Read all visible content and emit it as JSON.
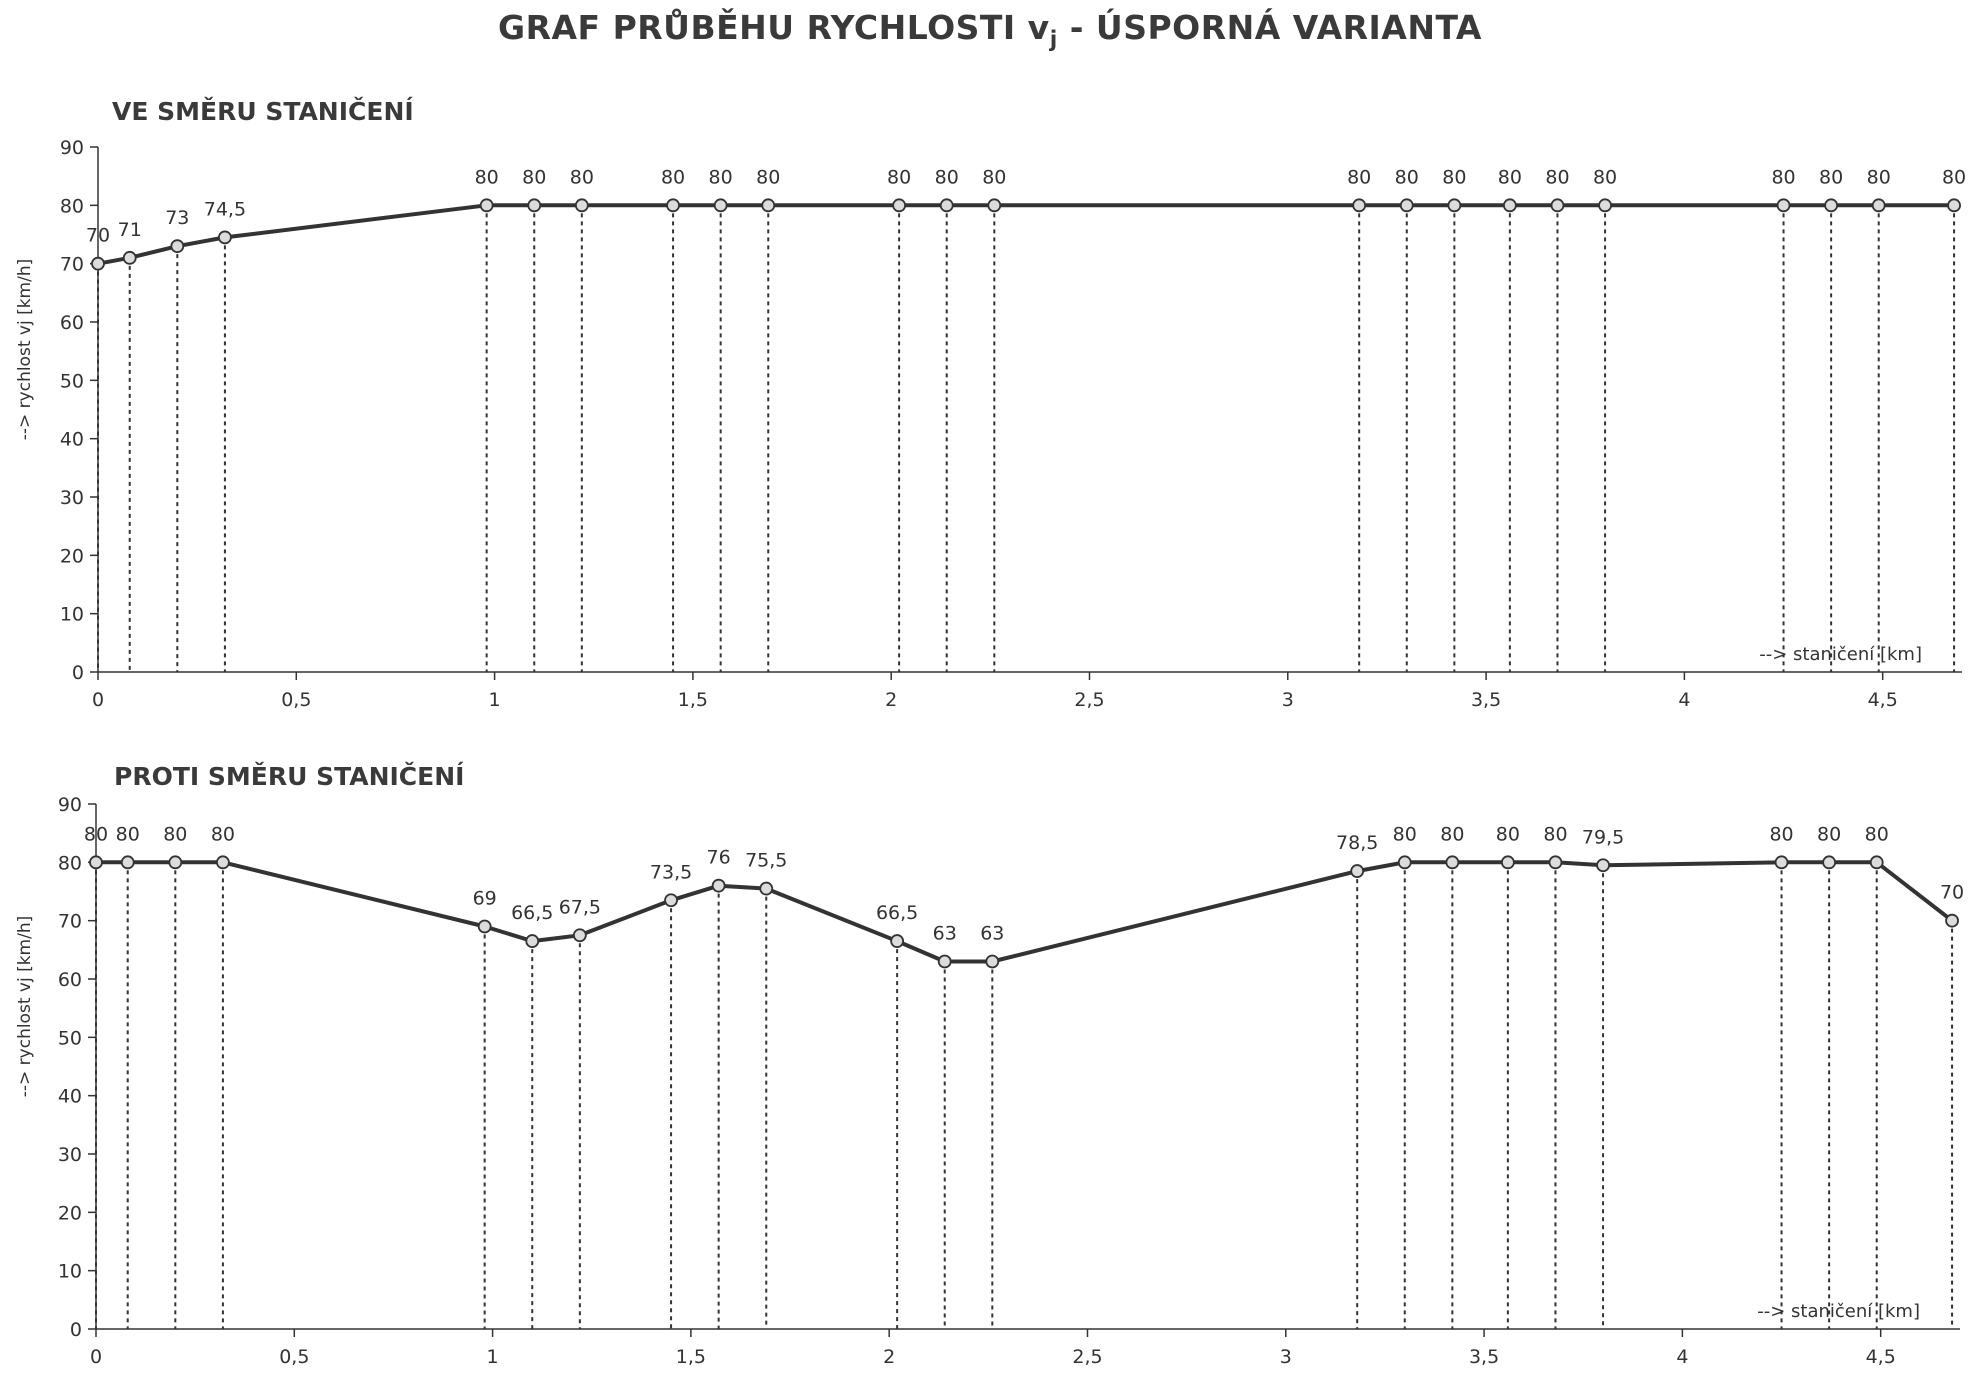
{
  "title_main": "GRAF PRŮBĚHU RYCHLOSTI v",
  "title_sub": "j",
  "title_tail": " - ÚSPORNÁ VARIANTA",
  "chart_data": [
    {
      "type": "line",
      "title": "VE SMĚRU STANIČENÍ",
      "xlabel": "--> staničení [km]",
      "ylabel": "--> rychlost vj [km/h]",
      "xlim": [
        0,
        4.7
      ],
      "ylim": [
        0,
        90
      ],
      "xticks": [
        "0",
        "0,5",
        "1",
        "1,5",
        "2",
        "2,5",
        "3",
        "3,5",
        "4",
        "4,5"
      ],
      "yticks": [
        "0",
        "10",
        "20",
        "30",
        "40",
        "50",
        "60",
        "70",
        "80",
        "90"
      ],
      "x": [
        0,
        0.08,
        0.2,
        0.32,
        0.98,
        1.1,
        1.22,
        1.45,
        1.57,
        1.69,
        2.02,
        2.14,
        2.26,
        3.18,
        3.3,
        3.42,
        3.56,
        3.68,
        3.8,
        4.25,
        4.37,
        4.49,
        4.68
      ],
      "values": [
        70,
        71,
        73,
        74.5,
        80,
        80,
        80,
        80,
        80,
        80,
        80,
        80,
        80,
        80,
        80,
        80,
        80,
        80,
        80,
        80,
        80,
        80,
        80
      ],
      "labels": [
        "70",
        "71",
        "73",
        "74,5",
        "80",
        "80",
        "80",
        "80",
        "80",
        "80",
        "80",
        "80",
        "80",
        "80",
        "80",
        "80",
        "80",
        "80",
        "80",
        "80",
        "80",
        "80",
        "80"
      ],
      "grid": false
    },
    {
      "type": "line",
      "title": "PROTI SMĚRU STANIČENÍ",
      "xlabel": "--> staničení [km]",
      "ylabel": "--> rychlost vj [km/h]",
      "xlim": [
        0,
        4.7
      ],
      "ylim": [
        0,
        90
      ],
      "xticks": [
        "0",
        "0,5",
        "1",
        "1,5",
        "2",
        "2,5",
        "3",
        "3,5",
        "4",
        "4,5"
      ],
      "yticks": [
        "0",
        "10",
        "20",
        "30",
        "40",
        "50",
        "60",
        "70",
        "80",
        "90"
      ],
      "x": [
        0,
        0.08,
        0.2,
        0.32,
        0.98,
        1.1,
        1.22,
        1.45,
        1.57,
        1.69,
        2.02,
        2.14,
        2.26,
        3.18,
        3.3,
        3.42,
        3.56,
        3.68,
        3.8,
        4.25,
        4.37,
        4.49,
        4.68
      ],
      "values": [
        80,
        80,
        80,
        80,
        69,
        66.5,
        67.5,
        73.5,
        76,
        75.5,
        66.5,
        63,
        63,
        78.5,
        80,
        80,
        80,
        80,
        79.5,
        80,
        80,
        80,
        70
      ],
      "labels": [
        "80",
        "80",
        "80",
        "80",
        "69",
        "66,5",
        "67,5",
        "73,5",
        "76",
        "75,5",
        "66,5",
        "63",
        "63",
        "78,5",
        "80",
        "80",
        "80",
        "80",
        "79,5",
        "80",
        "80",
        "80",
        "70"
      ],
      "grid": false
    }
  ]
}
